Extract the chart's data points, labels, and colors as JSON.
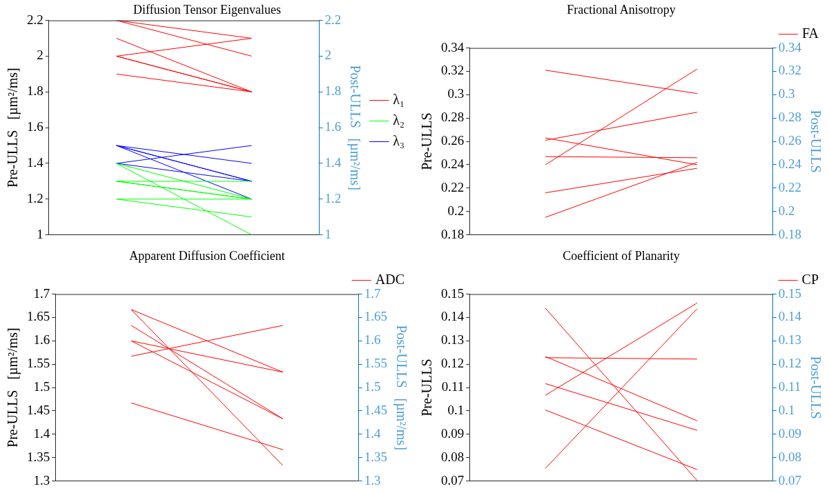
{
  "chart_data": [
    {
      "type": "line",
      "title": "Diffusion Tensor Eigenvalues",
      "ylabel": "Pre-ULLS   [µm²/ms]",
      "y2label": "Post-ULLS   [µm²/ms]",
      "categories": [
        null,
        null
      ],
      "series": [
        {
          "name": "λ₁",
          "color": "#ff0000",
          "values": [
            2.2,
            2.1
          ]
        },
        {
          "color": "#ff0000",
          "values": [
            2.2,
            2.0
          ]
        },
        {
          "color": "#ff0000",
          "values": [
            2.1,
            1.8
          ]
        },
        {
          "color": "#ff0000",
          "values": [
            2.0,
            2.1
          ]
        },
        {
          "color": "#ff0000",
          "values": [
            2.0,
            1.8
          ]
        },
        {
          "color": "#ff0000",
          "values": [
            2.0,
            1.8
          ]
        },
        {
          "color": "#ff0000",
          "values": [
            1.9,
            1.8
          ]
        },
        {
          "name": "λ₂",
          "color": "#00ff00",
          "values": [
            1.4,
            1.0
          ]
        },
        {
          "color": "#00ff00",
          "values": [
            1.4,
            1.2
          ]
        },
        {
          "color": "#00ff00",
          "values": [
            1.3,
            1.3
          ]
        },
        {
          "color": "#00ff00",
          "values": [
            1.3,
            1.2
          ]
        },
        {
          "color": "#00ff00",
          "values": [
            1.3,
            1.2
          ]
        },
        {
          "color": "#00ff00",
          "values": [
            1.2,
            1.2
          ]
        },
        {
          "color": "#00ff00",
          "values": [
            1.2,
            1.1
          ]
        },
        {
          "name": "λ₃",
          "color": "#0000ff",
          "values": [
            1.4,
            1.5
          ]
        },
        {
          "color": "#0000ff",
          "values": [
            1.5,
            1.4
          ]
        },
        {
          "color": "#0000ff",
          "values": [
            1.5,
            1.3
          ]
        },
        {
          "color": "#0000ff",
          "values": [
            1.5,
            1.3
          ]
        },
        {
          "color": "#0000ff",
          "values": [
            1.5,
            1.2
          ]
        },
        {
          "color": "#0000ff",
          "values": [
            1.4,
            1.3
          ]
        }
      ],
      "ylim": [
        1,
        2.2
      ],
      "yticks": [
        1,
        1.2,
        1.4,
        1.6,
        1.8,
        2,
        2.2
      ],
      "y2lim": [
        1,
        2.2
      ],
      "y2ticks": [
        1,
        1.2,
        1.4,
        1.6,
        1.8,
        2,
        2.2
      ],
      "legend": "right",
      "tick_labels": "y",
      "grid": false,
      "marker": "none"
    },
    {
      "type": "line",
      "title": "Fractional Anisotropy",
      "ylabel": "Pre-ULLS",
      "y2label": "Post-ULLS",
      "categories": [
        null,
        null
      ],
      "series": [
        {
          "name": "FA",
          "color": "#ff0000",
          "values": [
            0.321,
            0.301
          ]
        },
        {
          "color": "#ff0000",
          "values": [
            0.24,
            0.322
          ]
        },
        {
          "color": "#ff0000",
          "values": [
            0.261,
            0.285
          ]
        },
        {
          "color": "#ff0000",
          "values": [
            0.263,
            0.24
          ]
        },
        {
          "color": "#ff0000",
          "values": [
            0.247,
            0.246
          ]
        },
        {
          "color": "#ff0000",
          "values": [
            0.216,
            0.237
          ]
        },
        {
          "color": "#ff0000",
          "values": [
            0.195,
            0.242
          ]
        }
      ],
      "ylim": [
        0.18,
        0.34
      ],
      "yticks": [
        0.18,
        0.2,
        0.22,
        0.24,
        0.26,
        0.28,
        0.3,
        0.32,
        0.34
      ],
      "y2lim": [
        0.18,
        0.34
      ],
      "y2ticks": [
        0.18,
        0.2,
        0.22,
        0.24,
        0.26,
        0.28,
        0.3,
        0.32,
        0.34
      ],
      "legend": "top right",
      "tick_labels": "y",
      "grid": false,
      "marker": "none"
    },
    {
      "type": "line",
      "title": "Apparent Diffusion Coefficient",
      "ylabel": "Pre-ULLS   [µm²/ms]",
      "y2label": "Post-ULLS   [µm²/ms]",
      "categories": [
        null,
        null
      ],
      "series": [
        {
          "name": "ADC",
          "color": "#ff0000",
          "values": [
            1.667,
            1.533
          ]
        },
        {
          "color": "#ff0000",
          "values": [
            1.667,
            1.333
          ]
        },
        {
          "color": "#ff0000",
          "values": [
            1.633,
            1.433
          ]
        },
        {
          "color": "#ff0000",
          "values": [
            1.6,
            1.533
          ]
        },
        {
          "color": "#ff0000",
          "values": [
            1.6,
            1.433
          ]
        },
        {
          "color": "#ff0000",
          "values": [
            1.567,
            1.633
          ]
        },
        {
          "color": "#ff0000",
          "values": [
            1.467,
            1.367
          ]
        }
      ],
      "ylim": [
        1.3,
        1.7
      ],
      "yticks": [
        1.3,
        1.35,
        1.4,
        1.45,
        1.5,
        1.55,
        1.6,
        1.65,
        1.7
      ],
      "y2lim": [
        1.3,
        1.7
      ],
      "y2ticks": [
        1.3,
        1.35,
        1.4,
        1.45,
        1.5,
        1.55,
        1.6,
        1.65,
        1.7
      ],
      "legend": "top right",
      "tick_labels": "y",
      "grid": false,
      "marker": "none"
    },
    {
      "type": "line",
      "title": "Coefficient of Planarity",
      "ylabel": "Pre-ULLS",
      "y2label": "Post-ULLS",
      "categories": [
        null,
        null
      ],
      "series": [
        {
          "name": "CP",
          "color": "#ff0000",
          "values": [
            0.144,
            0.0702
          ]
        },
        {
          "color": "#ff0000",
          "values": [
            0.1228,
            0.1222
          ]
        },
        {
          "color": "#ff0000",
          "values": [
            0.1233,
            0.0958
          ]
        },
        {
          "color": "#ff0000",
          "values": [
            0.1067,
            0.1462
          ]
        },
        {
          "color": "#ff0000",
          "values": [
            0.1117,
            0.0917
          ]
        },
        {
          "color": "#ff0000",
          "values": [
            0.1004,
            0.0749
          ]
        },
        {
          "color": "#ff0000",
          "values": [
            0.0754,
            0.1437
          ]
        }
      ],
      "ylim": [
        0.07,
        0.15
      ],
      "yticks": [
        0.07,
        0.08,
        0.09,
        0.1,
        0.11,
        0.12,
        0.13,
        0.14,
        0.15
      ],
      "y2lim": [
        0.07,
        0.15
      ],
      "y2ticks": [
        0.07,
        0.08,
        0.09,
        0.1,
        0.11,
        0.12,
        0.13,
        0.14,
        0.15
      ],
      "legend": "top right",
      "tick_labels": "y",
      "grid": false,
      "marker": "none"
    }
  ]
}
